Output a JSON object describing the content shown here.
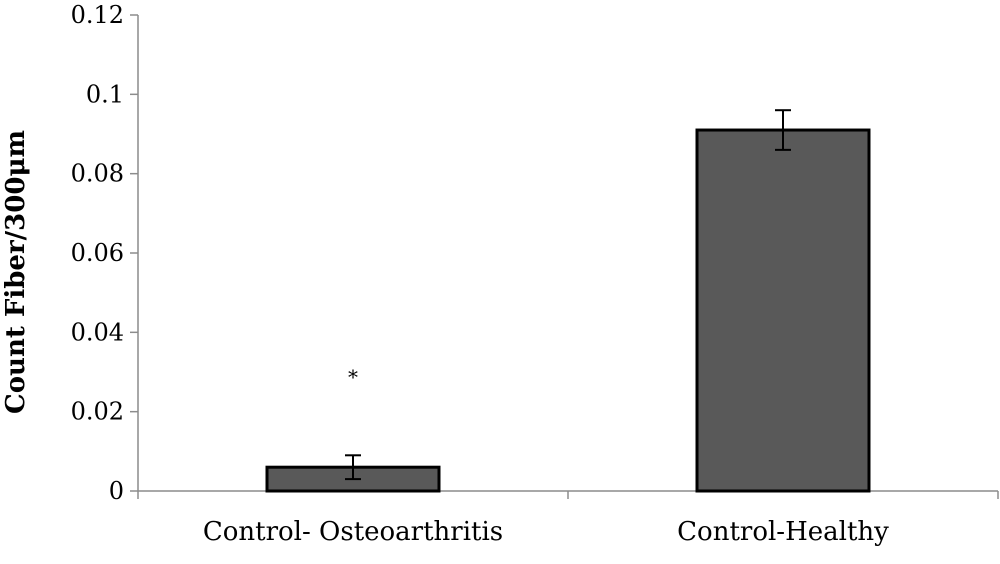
{
  "chart_data": {
    "type": "bar",
    "title": "",
    "xlabel": "",
    "ylabel": "Count Fiber/300μm",
    "categories": [
      "Control- Osteoarthritis",
      "Control-Healthy"
    ],
    "values": [
      0.006,
      0.091
    ],
    "error": [
      0.003,
      0.005
    ],
    "annotations": [
      {
        "category": "Control- Osteoarthritis",
        "text": "*"
      }
    ],
    "ylim": [
      0,
      0.12
    ],
    "yticks": [
      "0",
      "0.02",
      "0.04",
      "0.06",
      "0.08",
      "0.1",
      "0.12"
    ],
    "grid": false,
    "legend": "none",
    "colors": {
      "bar_fill": "#595959",
      "bar_stroke": "#000000",
      "axis": "#8c8c8c"
    }
  }
}
